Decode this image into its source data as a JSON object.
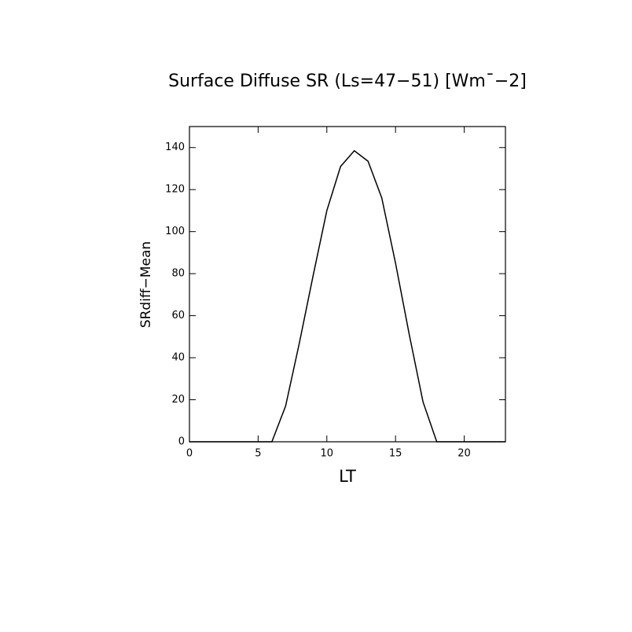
{
  "chart_data": {
    "type": "line",
    "title": "Surface Diffuse SR (Ls=47−51) [Wm¯−2]",
    "x_label": "LT",
    "y_label": "SRdiff−Mean",
    "x": [
      0,
      1,
      2,
      3,
      4,
      5,
      6,
      7,
      8,
      9,
      10,
      11,
      12,
      13,
      14,
      15,
      16,
      17,
      18,
      19,
      20,
      21,
      22,
      23
    ],
    "series": [
      {
        "color": "#000000",
        "values": [
          0,
          0,
          0,
          0,
          0,
          0,
          0,
          17,
          47,
          79,
          110,
          131,
          138.5,
          133.5,
          116,
          85,
          51,
          19,
          0,
          0,
          0,
          0,
          0,
          0
        ]
      }
    ],
    "xlim": [
      0,
      23
    ],
    "xticks": [
      0,
      5,
      10,
      15,
      20
    ],
    "ylim": [
      0,
      150
    ],
    "yticks": [
      0,
      20,
      40,
      60,
      80,
      100,
      120,
      140
    ]
  }
}
